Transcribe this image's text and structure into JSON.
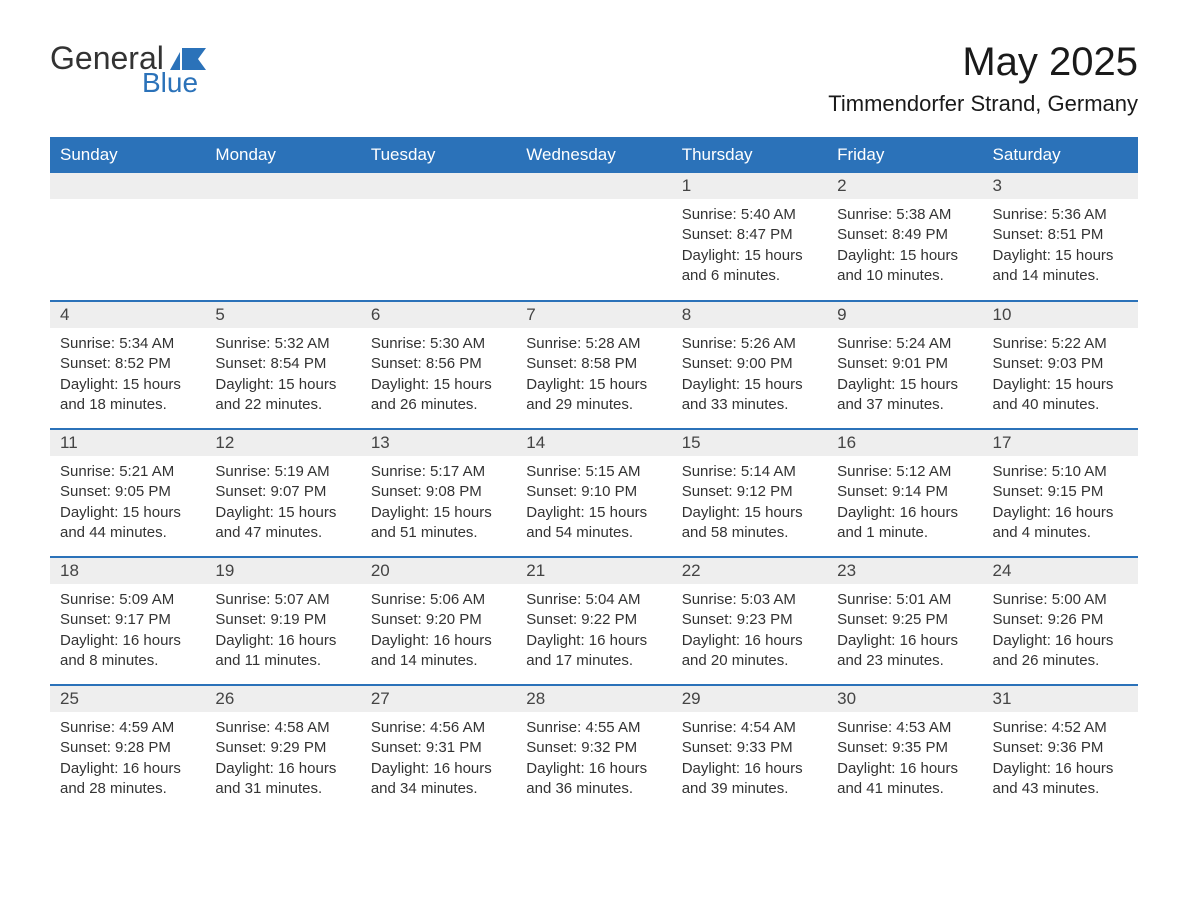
{
  "logo": {
    "general": "General",
    "blue": "Blue"
  },
  "title": "May 2025",
  "location": "Timmendorfer Strand, Germany",
  "colors": {
    "header_bg": "#2b72b9",
    "header_text": "#ffffff",
    "daynum_bg": "#eeeeee",
    "border": "#2b72b9",
    "text": "#333333",
    "background": "#ffffff"
  },
  "layout": {
    "columns": 7,
    "rows": 5,
    "type": "calendar"
  },
  "weekdays": [
    "Sunday",
    "Monday",
    "Tuesday",
    "Wednesday",
    "Thursday",
    "Friday",
    "Saturday"
  ],
  "weeks": [
    [
      {
        "blank": true
      },
      {
        "blank": true
      },
      {
        "blank": true
      },
      {
        "blank": true
      },
      {
        "day": "1",
        "sunrise": "Sunrise: 5:40 AM",
        "sunset": "Sunset: 8:47 PM",
        "daylight": "Daylight: 15 hours and 6 minutes."
      },
      {
        "day": "2",
        "sunrise": "Sunrise: 5:38 AM",
        "sunset": "Sunset: 8:49 PM",
        "daylight": "Daylight: 15 hours and 10 minutes."
      },
      {
        "day": "3",
        "sunrise": "Sunrise: 5:36 AM",
        "sunset": "Sunset: 8:51 PM",
        "daylight": "Daylight: 15 hours and 14 minutes."
      }
    ],
    [
      {
        "day": "4",
        "sunrise": "Sunrise: 5:34 AM",
        "sunset": "Sunset: 8:52 PM",
        "daylight": "Daylight: 15 hours and 18 minutes."
      },
      {
        "day": "5",
        "sunrise": "Sunrise: 5:32 AM",
        "sunset": "Sunset: 8:54 PM",
        "daylight": "Daylight: 15 hours and 22 minutes."
      },
      {
        "day": "6",
        "sunrise": "Sunrise: 5:30 AM",
        "sunset": "Sunset: 8:56 PM",
        "daylight": "Daylight: 15 hours and 26 minutes."
      },
      {
        "day": "7",
        "sunrise": "Sunrise: 5:28 AM",
        "sunset": "Sunset: 8:58 PM",
        "daylight": "Daylight: 15 hours and 29 minutes."
      },
      {
        "day": "8",
        "sunrise": "Sunrise: 5:26 AM",
        "sunset": "Sunset: 9:00 PM",
        "daylight": "Daylight: 15 hours and 33 minutes."
      },
      {
        "day": "9",
        "sunrise": "Sunrise: 5:24 AM",
        "sunset": "Sunset: 9:01 PM",
        "daylight": "Daylight: 15 hours and 37 minutes."
      },
      {
        "day": "10",
        "sunrise": "Sunrise: 5:22 AM",
        "sunset": "Sunset: 9:03 PM",
        "daylight": "Daylight: 15 hours and 40 minutes."
      }
    ],
    [
      {
        "day": "11",
        "sunrise": "Sunrise: 5:21 AM",
        "sunset": "Sunset: 9:05 PM",
        "daylight": "Daylight: 15 hours and 44 minutes."
      },
      {
        "day": "12",
        "sunrise": "Sunrise: 5:19 AM",
        "sunset": "Sunset: 9:07 PM",
        "daylight": "Daylight: 15 hours and 47 minutes."
      },
      {
        "day": "13",
        "sunrise": "Sunrise: 5:17 AM",
        "sunset": "Sunset: 9:08 PM",
        "daylight": "Daylight: 15 hours and 51 minutes."
      },
      {
        "day": "14",
        "sunrise": "Sunrise: 5:15 AM",
        "sunset": "Sunset: 9:10 PM",
        "daylight": "Daylight: 15 hours and 54 minutes."
      },
      {
        "day": "15",
        "sunrise": "Sunrise: 5:14 AM",
        "sunset": "Sunset: 9:12 PM",
        "daylight": "Daylight: 15 hours and 58 minutes."
      },
      {
        "day": "16",
        "sunrise": "Sunrise: 5:12 AM",
        "sunset": "Sunset: 9:14 PM",
        "daylight": "Daylight: 16 hours and 1 minute."
      },
      {
        "day": "17",
        "sunrise": "Sunrise: 5:10 AM",
        "sunset": "Sunset: 9:15 PM",
        "daylight": "Daylight: 16 hours and 4 minutes."
      }
    ],
    [
      {
        "day": "18",
        "sunrise": "Sunrise: 5:09 AM",
        "sunset": "Sunset: 9:17 PM",
        "daylight": "Daylight: 16 hours and 8 minutes."
      },
      {
        "day": "19",
        "sunrise": "Sunrise: 5:07 AM",
        "sunset": "Sunset: 9:19 PM",
        "daylight": "Daylight: 16 hours and 11 minutes."
      },
      {
        "day": "20",
        "sunrise": "Sunrise: 5:06 AM",
        "sunset": "Sunset: 9:20 PM",
        "daylight": "Daylight: 16 hours and 14 minutes."
      },
      {
        "day": "21",
        "sunrise": "Sunrise: 5:04 AM",
        "sunset": "Sunset: 9:22 PM",
        "daylight": "Daylight: 16 hours and 17 minutes."
      },
      {
        "day": "22",
        "sunrise": "Sunrise: 5:03 AM",
        "sunset": "Sunset: 9:23 PM",
        "daylight": "Daylight: 16 hours and 20 minutes."
      },
      {
        "day": "23",
        "sunrise": "Sunrise: 5:01 AM",
        "sunset": "Sunset: 9:25 PM",
        "daylight": "Daylight: 16 hours and 23 minutes."
      },
      {
        "day": "24",
        "sunrise": "Sunrise: 5:00 AM",
        "sunset": "Sunset: 9:26 PM",
        "daylight": "Daylight: 16 hours and 26 minutes."
      }
    ],
    [
      {
        "day": "25",
        "sunrise": "Sunrise: 4:59 AM",
        "sunset": "Sunset: 9:28 PM",
        "daylight": "Daylight: 16 hours and 28 minutes."
      },
      {
        "day": "26",
        "sunrise": "Sunrise: 4:58 AM",
        "sunset": "Sunset: 9:29 PM",
        "daylight": "Daylight: 16 hours and 31 minutes."
      },
      {
        "day": "27",
        "sunrise": "Sunrise: 4:56 AM",
        "sunset": "Sunset: 9:31 PM",
        "daylight": "Daylight: 16 hours and 34 minutes."
      },
      {
        "day": "28",
        "sunrise": "Sunrise: 4:55 AM",
        "sunset": "Sunset: 9:32 PM",
        "daylight": "Daylight: 16 hours and 36 minutes."
      },
      {
        "day": "29",
        "sunrise": "Sunrise: 4:54 AM",
        "sunset": "Sunset: 9:33 PM",
        "daylight": "Daylight: 16 hours and 39 minutes."
      },
      {
        "day": "30",
        "sunrise": "Sunrise: 4:53 AM",
        "sunset": "Sunset: 9:35 PM",
        "daylight": "Daylight: 16 hours and 41 minutes."
      },
      {
        "day": "31",
        "sunrise": "Sunrise: 4:52 AM",
        "sunset": "Sunset: 9:36 PM",
        "daylight": "Daylight: 16 hours and 43 minutes."
      }
    ]
  ]
}
